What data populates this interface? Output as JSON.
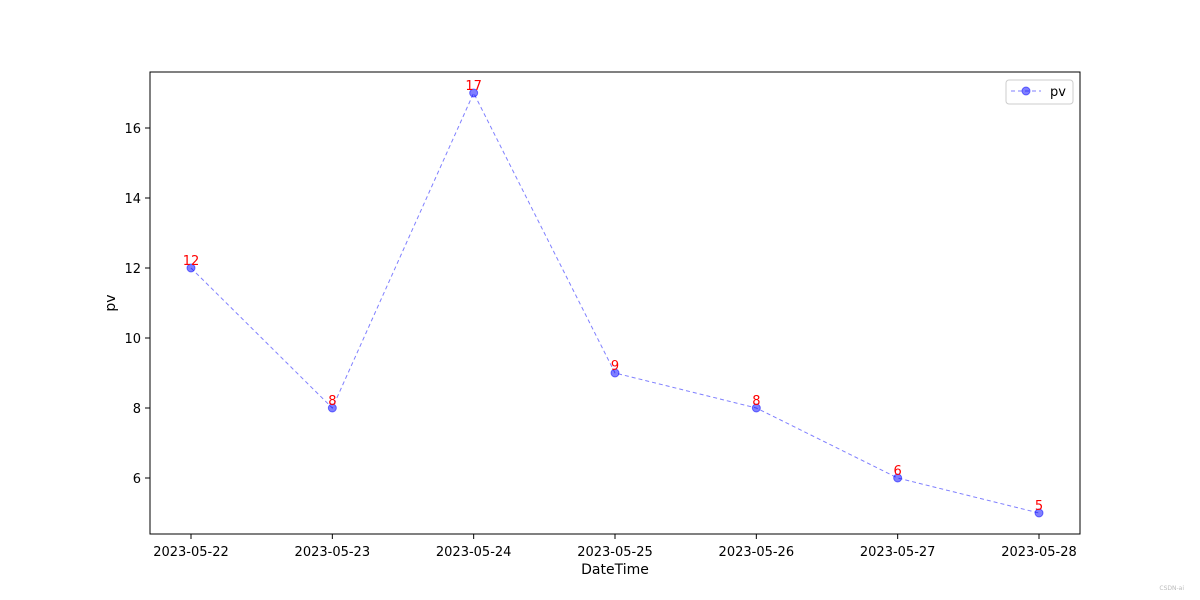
{
  "chart_data": {
    "type": "line",
    "title": "",
    "xlabel": "DateTime",
    "ylabel": "pv",
    "x": [
      "2023-05-22",
      "2023-05-23",
      "2023-05-24",
      "2023-05-25",
      "2023-05-26",
      "2023-05-27",
      "2023-05-28"
    ],
    "series": [
      {
        "name": "pv",
        "values": [
          12,
          8,
          17,
          9,
          8,
          6,
          5
        ]
      }
    ],
    "data_labels": [
      "12",
      "8",
      "17",
      "9",
      "8",
      "6",
      "5"
    ],
    "yticks": [
      6,
      8,
      10,
      12,
      14,
      16
    ],
    "ylim": [
      4.4,
      17.6
    ],
    "line_style": "dashed",
    "marker": "circle",
    "series_color": "#0000ff",
    "series_alpha": 0.5,
    "label_color": "#ff0000",
    "grid": false,
    "legend_position": "top-right"
  },
  "watermark": "CSDN-ai"
}
